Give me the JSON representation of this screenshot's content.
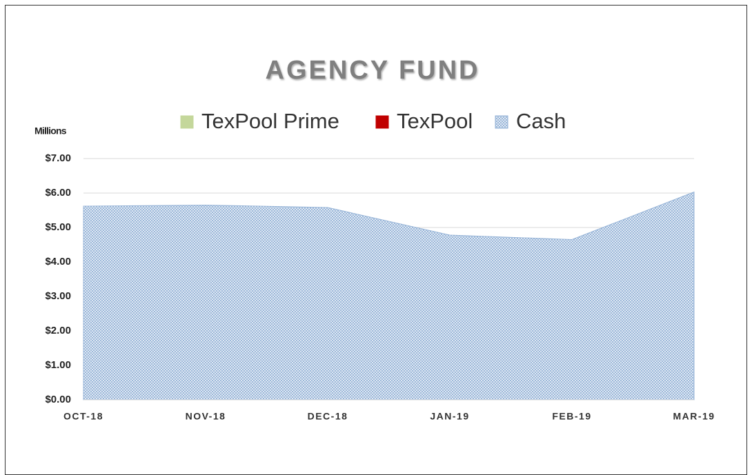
{
  "chart_data": {
    "type": "stacked_area",
    "title": "AGENCY FUND",
    "y_axis_label": "Millions",
    "categories": [
      "OCT-18",
      "NOV-18",
      "DEC-18",
      "JAN-19",
      "FEB-19",
      "MAR-19"
    ],
    "series": [
      {
        "name": "TexPool Prime",
        "color": "#c4d79b",
        "values": [
          0,
          0,
          0,
          0,
          0,
          0
        ]
      },
      {
        "name": "TexPool",
        "color": "#c00000",
        "values": [
          0,
          0,
          0,
          0,
          0,
          0
        ]
      },
      {
        "name": "Cash",
        "color": "#95b3d7",
        "values": [
          5.62,
          5.65,
          5.58,
          4.78,
          4.65,
          6.03
        ]
      }
    ],
    "ylim": [
      0,
      7
    ],
    "yticks": [
      {
        "value": 0,
        "label": "$0.00"
      },
      {
        "value": 1,
        "label": "$1.00"
      },
      {
        "value": 2,
        "label": "$2.00"
      },
      {
        "value": 3,
        "label": "$3.00"
      },
      {
        "value": 4,
        "label": "$4.00"
      },
      {
        "value": 5,
        "label": "$5.00"
      },
      {
        "value": 6,
        "label": "$6.00"
      },
      {
        "value": 7,
        "label": "$7.00"
      }
    ],
    "grid": true,
    "legend": "top"
  }
}
